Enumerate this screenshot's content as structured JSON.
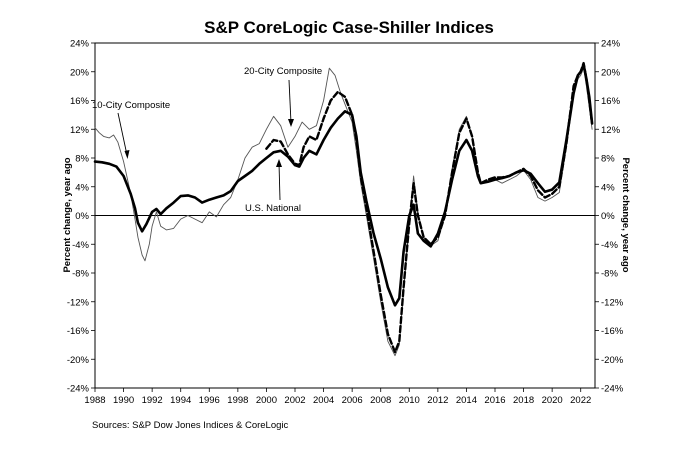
{
  "chart_data": {
    "type": "line",
    "title": "S&P CoreLogic Case-Shiller Indices",
    "ylabel_left": "Percent change, year ago",
    "ylabel_right": "Percent change, year ago",
    "xlim": [
      1988,
      2023
    ],
    "ylim": [
      -24,
      24
    ],
    "x_ticks": [
      "1988",
      "1990",
      "1992",
      "1994",
      "1996",
      "1998",
      "2000",
      "2002",
      "2004",
      "2006",
      "2008",
      "2010",
      "2012",
      "2014",
      "2016",
      "2018",
      "2020",
      "2022"
    ],
    "y_ticks": [
      "24%",
      "20%",
      "16%",
      "12%",
      "8%",
      "4%",
      "0%",
      "-4%",
      "-8%",
      "-12%",
      "-16%",
      "-20%",
      "-24%"
    ],
    "zero_line": true,
    "source": "Sources:  S&P Dow Jones Indices & CoreLogic",
    "annotations": {
      "city10": "10-City Composite",
      "city20": "20-City Composite",
      "national": "U.S. National"
    },
    "series": [
      {
        "name": "U.S. National",
        "style": "thick-solid",
        "color": "#000000",
        "points": [
          [
            1988.0,
            7.5
          ],
          [
            1988.5,
            7.4
          ],
          [
            1989.0,
            7.2
          ],
          [
            1989.5,
            6.8
          ],
          [
            1990.0,
            5.5
          ],
          [
            1990.5,
            3.0
          ],
          [
            1990.8,
            1.0
          ],
          [
            1991.0,
            -1.0
          ],
          [
            1991.3,
            -2.2
          ],
          [
            1991.6,
            -1.2
          ],
          [
            1992.0,
            0.5
          ],
          [
            1992.3,
            0.9
          ],
          [
            1992.6,
            0.2
          ],
          [
            1993.0,
            1.0
          ],
          [
            1993.5,
            1.8
          ],
          [
            1994.0,
            2.7
          ],
          [
            1994.5,
            2.8
          ],
          [
            1995.0,
            2.5
          ],
          [
            1995.5,
            1.8
          ],
          [
            1996.0,
            2.2
          ],
          [
            1996.5,
            2.5
          ],
          [
            1997.0,
            2.8
          ],
          [
            1997.5,
            3.4
          ],
          [
            1998.0,
            4.8
          ],
          [
            1998.5,
            5.5
          ],
          [
            1999.0,
            6.2
          ],
          [
            1999.5,
            7.2
          ],
          [
            2000.0,
            8.0
          ],
          [
            2000.5,
            8.8
          ],
          [
            2001.0,
            9.0
          ],
          [
            2001.5,
            8.2
          ],
          [
            2002.0,
            7.0
          ],
          [
            2002.3,
            6.8
          ],
          [
            2002.6,
            8.0
          ],
          [
            2003.0,
            9.0
          ],
          [
            2003.5,
            8.5
          ],
          [
            2004.0,
            10.5
          ],
          [
            2004.5,
            12.2
          ],
          [
            2005.0,
            13.5
          ],
          [
            2005.5,
            14.5
          ],
          [
            2006.0,
            14.0
          ],
          [
            2006.3,
            11.0
          ],
          [
            2006.6,
            6.0
          ],
          [
            2007.0,
            2.0
          ],
          [
            2007.5,
            -2.5
          ],
          [
            2008.0,
            -6.0
          ],
          [
            2008.5,
            -10.0
          ],
          [
            2009.0,
            -12.5
          ],
          [
            2009.3,
            -11.5
          ],
          [
            2009.6,
            -5.0
          ],
          [
            2010.0,
            0.0
          ],
          [
            2010.3,
            1.5
          ],
          [
            2010.6,
            -2.5
          ],
          [
            2011.0,
            -3.5
          ],
          [
            2011.5,
            -4.3
          ],
          [
            2012.0,
            -2.5
          ],
          [
            2012.5,
            0.5
          ],
          [
            2013.0,
            5.0
          ],
          [
            2013.5,
            9.0
          ],
          [
            2014.0,
            10.5
          ],
          [
            2014.4,
            9.0
          ],
          [
            2014.8,
            5.5
          ],
          [
            2015.0,
            4.5
          ],
          [
            2015.5,
            4.7
          ],
          [
            2016.0,
            5.0
          ],
          [
            2016.5,
            5.2
          ],
          [
            2017.0,
            5.5
          ],
          [
            2017.5,
            6.0
          ],
          [
            2018.0,
            6.3
          ],
          [
            2018.5,
            5.8
          ],
          [
            2019.0,
            4.5
          ],
          [
            2019.5,
            3.3
          ],
          [
            2020.0,
            3.6
          ],
          [
            2020.5,
            4.6
          ],
          [
            2021.0,
            10.5
          ],
          [
            2021.5,
            17.0
          ],
          [
            2021.8,
            19.5
          ],
          [
            2022.0,
            20.0
          ],
          [
            2022.2,
            21.0
          ],
          [
            2022.4,
            19.0
          ],
          [
            2022.6,
            16.5
          ],
          [
            2022.8,
            12.8
          ]
        ]
      },
      {
        "name": "20-City Composite",
        "style": "thick-dashed",
        "color": "#000000",
        "points": [
          [
            2000.0,
            9.3
          ],
          [
            2000.5,
            10.5
          ],
          [
            2001.0,
            10.3
          ],
          [
            2001.5,
            8.5
          ],
          [
            2002.0,
            7.2
          ],
          [
            2002.3,
            7.0
          ],
          [
            2002.6,
            9.5
          ],
          [
            2003.0,
            11.0
          ],
          [
            2003.5,
            10.5
          ],
          [
            2004.0,
            13.5
          ],
          [
            2004.5,
            16.0
          ],
          [
            2005.0,
            17.2
          ],
          [
            2005.5,
            16.5
          ],
          [
            2006.0,
            14.0
          ],
          [
            2006.3,
            10.5
          ],
          [
            2006.6,
            5.5
          ],
          [
            2007.0,
            1.0
          ],
          [
            2007.5,
            -5.0
          ],
          [
            2008.0,
            -11.0
          ],
          [
            2008.5,
            -16.5
          ],
          [
            2009.0,
            -19.0
          ],
          [
            2009.3,
            -17.5
          ],
          [
            2009.6,
            -10.0
          ],
          [
            2010.0,
            -1.0
          ],
          [
            2010.3,
            4.5
          ],
          [
            2010.6,
            0.0
          ],
          [
            2011.0,
            -3.0
          ],
          [
            2011.5,
            -4.0
          ],
          [
            2012.0,
            -3.0
          ],
          [
            2012.5,
            0.0
          ],
          [
            2013.0,
            6.0
          ],
          [
            2013.5,
            11.5
          ],
          [
            2014.0,
            13.5
          ],
          [
            2014.4,
            11.0
          ],
          [
            2014.8,
            6.0
          ],
          [
            2015.0,
            4.5
          ],
          [
            2015.5,
            5.0
          ],
          [
            2016.0,
            5.3
          ],
          [
            2016.5,
            5.3
          ],
          [
            2017.0,
            5.5
          ],
          [
            2017.5,
            6.0
          ],
          [
            2018.0,
            6.5
          ],
          [
            2018.5,
            5.5
          ],
          [
            2019.0,
            3.5
          ],
          [
            2019.5,
            2.5
          ],
          [
            2020.0,
            3.0
          ],
          [
            2020.5,
            4.0
          ],
          [
            2021.0,
            10.0
          ],
          [
            2021.5,
            18.0
          ],
          [
            2021.8,
            19.5
          ],
          [
            2022.0,
            20.0
          ],
          [
            2022.2,
            21.2
          ],
          [
            2022.4,
            19.0
          ],
          [
            2022.6,
            16.0
          ],
          [
            2022.8,
            12.8
          ]
        ]
      },
      {
        "name": "10-City Composite",
        "style": "thin-solid",
        "color": "#555555",
        "points": [
          [
            1988.0,
            12.2
          ],
          [
            1988.3,
            11.5
          ],
          [
            1988.6,
            11.0
          ],
          [
            1989.0,
            10.8
          ],
          [
            1989.3,
            11.2
          ],
          [
            1989.6,
            10.2
          ],
          [
            1990.0,
            7.5
          ],
          [
            1990.5,
            3.0
          ],
          [
            1990.8,
            -0.5
          ],
          [
            1991.0,
            -3.0
          ],
          [
            1991.3,
            -5.5
          ],
          [
            1991.5,
            -6.3
          ],
          [
            1991.8,
            -4.0
          ],
          [
            1992.0,
            -1.5
          ],
          [
            1992.3,
            0.5
          ],
          [
            1992.6,
            -1.5
          ],
          [
            1993.0,
            -2.0
          ],
          [
            1993.5,
            -1.8
          ],
          [
            1994.0,
            -0.5
          ],
          [
            1994.5,
            0.0
          ],
          [
            1995.0,
            -0.5
          ],
          [
            1995.5,
            -1.0
          ],
          [
            1996.0,
            0.5
          ],
          [
            1996.5,
            -0.2
          ],
          [
            1997.0,
            1.5
          ],
          [
            1997.5,
            2.5
          ],
          [
            1998.0,
            5.0
          ],
          [
            1998.5,
            8.0
          ],
          [
            1999.0,
            9.5
          ],
          [
            1999.5,
            10.0
          ],
          [
            2000.0,
            12.0
          ],
          [
            2000.5,
            13.8
          ],
          [
            2001.0,
            12.5
          ],
          [
            2001.5,
            9.5
          ],
          [
            2002.0,
            11.0
          ],
          [
            2002.5,
            13.0
          ],
          [
            2003.0,
            12.0
          ],
          [
            2003.5,
            12.5
          ],
          [
            2004.0,
            16.0
          ],
          [
            2004.4,
            20.5
          ],
          [
            2004.8,
            19.5
          ],
          [
            2005.2,
            17.0
          ],
          [
            2005.6,
            15.0
          ],
          [
            2006.0,
            13.0
          ],
          [
            2006.3,
            9.0
          ],
          [
            2006.6,
            4.5
          ],
          [
            2007.0,
            0.0
          ],
          [
            2007.5,
            -6.0
          ],
          [
            2008.0,
            -12.0
          ],
          [
            2008.5,
            -17.5
          ],
          [
            2009.0,
            -19.5
          ],
          [
            2009.3,
            -18.0
          ],
          [
            2009.6,
            -10.5
          ],
          [
            2010.0,
            -1.0
          ],
          [
            2010.3,
            5.5
          ],
          [
            2010.6,
            0.5
          ],
          [
            2011.0,
            -3.0
          ],
          [
            2011.5,
            -4.2
          ],
          [
            2012.0,
            -3.5
          ],
          [
            2012.5,
            0.0
          ],
          [
            2013.0,
            6.5
          ],
          [
            2013.5,
            12.0
          ],
          [
            2014.0,
            13.8
          ],
          [
            2014.4,
            11.0
          ],
          [
            2014.8,
            5.5
          ],
          [
            2015.0,
            4.5
          ],
          [
            2015.5,
            4.8
          ],
          [
            2016.0,
            5.0
          ],
          [
            2016.5,
            4.5
          ],
          [
            2017.0,
            5.0
          ],
          [
            2017.5,
            5.5
          ],
          [
            2018.0,
            6.3
          ],
          [
            2018.5,
            5.0
          ],
          [
            2019.0,
            2.5
          ],
          [
            2019.5,
            2.0
          ],
          [
            2020.0,
            2.5
          ],
          [
            2020.5,
            3.2
          ],
          [
            2021.0,
            9.5
          ],
          [
            2021.5,
            17.0
          ],
          [
            2021.8,
            19.0
          ],
          [
            2022.0,
            19.5
          ],
          [
            2022.2,
            20.5
          ],
          [
            2022.4,
            18.0
          ],
          [
            2022.6,
            15.0
          ],
          [
            2022.8,
            12.0
          ]
        ]
      }
    ]
  }
}
